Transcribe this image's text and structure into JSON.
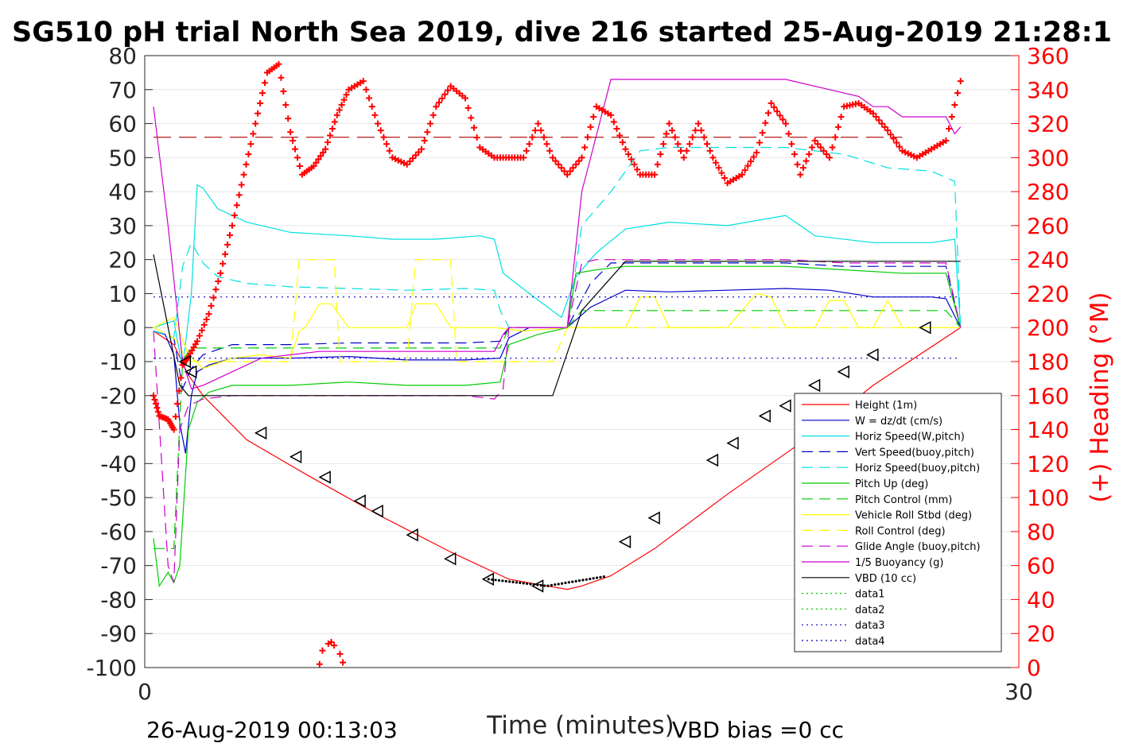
{
  "chart_data": {
    "type": "line",
    "title": "SG510 pH trial North Sea 2019, dive 216 started 25-Aug-2019 21:28:1",
    "xlabel": "Time (minutes)",
    "ylabel": "",
    "ylabel_right": "(+) Heading (°M)",
    "xlim": [
      0,
      30
    ],
    "ylim": [
      -100,
      80
    ],
    "ylim_right": [
      0,
      360
    ],
    "x_ticks": [
      "0",
      "30"
    ],
    "y_ticks": [
      "80",
      "70",
      "60",
      "50",
      "40",
      "30",
      "20",
      "10",
      "0",
      "-10",
      "-20",
      "-30",
      "-40",
      "-50",
      "-60",
      "-70",
      "-80",
      "-90",
      "-100"
    ],
    "y_ticks_right": [
      "360",
      "340",
      "320",
      "300",
      "280",
      "260",
      "240",
      "220",
      "200",
      "180",
      "160",
      "140",
      "120",
      "100",
      "80",
      "60",
      "40",
      "20",
      "0"
    ],
    "grid": true,
    "legend_position": "bottom-right",
    "footer_left": "26-Aug-2019 00:13:03",
    "footer_right": "VBD bias =0 cc",
    "colors": {
      "height": "#ff0000",
      "w": "#0000cc",
      "horiz_w": "#00e0e0",
      "vert_buoy": "#0000cc",
      "horiz_buoy": "#00e0e0",
      "pitch": "#00cc00",
      "pitch_ctrl": "#00cc00",
      "roll": "#ffff00",
      "roll_ctrl": "#ffff00",
      "glide": "#cc00cc",
      "buoy": "#cc00cc",
      "vbd": "#000000",
      "heading": "#ff0000",
      "heading_ref": "#aa0000"
    },
    "series": [
      {
        "name": "Height (1m)",
        "key": "height",
        "style": "solid",
        "x": [
          0.3,
          1.0,
          1.5,
          2.0,
          3.5,
          5.5,
          8.0,
          10.5,
          12.5,
          13.8,
          14.5,
          15.0,
          16.0,
          17.5,
          20.0,
          22.5,
          25.0,
          28.0
        ],
        "y": [
          -1,
          -5,
          -14,
          -20,
          -33,
          -43,
          -55,
          -66,
          -74,
          -76,
          -77,
          -76,
          -73,
          -65,
          -49,
          -34,
          -17,
          0
        ]
      },
      {
        "name": "W = dz/dt (cm/s)",
        "key": "w",
        "style": "solid",
        "x": [
          0.3,
          0.7,
          1.0,
          1.2,
          1.4,
          1.6,
          1.8,
          2.2,
          3.0,
          5.0,
          7.0,
          9.0,
          11.0,
          12.2,
          12.5,
          13.2,
          14.5,
          15.3,
          16.5,
          18.0,
          20.0,
          22.0,
          23.5,
          25.0,
          27.0,
          27.5,
          28.0
        ],
        "y": [
          -1,
          -2,
          -8,
          -28,
          -37,
          -20,
          -13,
          -11,
          -9,
          -9,
          -8.5,
          -9.5,
          -9.5,
          -9,
          -3,
          0,
          0,
          6,
          11,
          10.5,
          11,
          11.5,
          11,
          9,
          9,
          8.5,
          0
        ]
      },
      {
        "name": "Horiz Speed(W,pitch)",
        "key": "horiz_w",
        "style": "solid",
        "x": [
          0.3,
          1.0,
          1.3,
          1.6,
          1.8,
          2.0,
          2.5,
          3.5,
          5.0,
          7.0,
          8.5,
          10.0,
          11.5,
          12.0,
          12.3,
          13.2,
          14.3,
          14.8,
          15.5,
          16.5,
          18.0,
          20.0,
          22.0,
          23.0,
          25.0,
          27.0,
          27.8,
          28.0
        ],
        "y": [
          0,
          2,
          -12,
          10,
          42,
          41,
          35,
          31,
          28,
          27,
          26,
          26,
          27,
          26,
          16,
          10,
          3,
          15,
          22,
          29,
          31,
          30,
          33,
          27,
          25,
          25,
          26,
          0
        ]
      },
      {
        "name": "Vert Speed(buoy,pitch)",
        "key": "vert_buoy",
        "style": "dashed",
        "x": [
          0.3,
          1.0,
          1.3,
          1.6,
          2.0,
          3.0,
          5.0,
          7.0,
          9.0,
          11.0,
          12.2,
          12.5,
          13.0,
          14.5,
          15.3,
          16.0,
          18.0,
          20.0,
          22.0,
          24.0,
          26.0,
          27.5,
          28.0
        ],
        "y": [
          -1,
          -3,
          -18,
          -12,
          -8,
          -5,
          -5,
          -4.5,
          -4.5,
          -4.5,
          -4,
          0,
          0,
          0,
          13,
          19,
          19,
          19,
          19,
          18,
          18,
          18,
          0
        ]
      },
      {
        "name": "Horiz Speed(buoy,pitch)",
        "key": "horiz_buoy",
        "style": "dashed",
        "x": [
          0.3,
          1.0,
          1.3,
          1.6,
          2.0,
          2.5,
          3.5,
          5.0,
          7.0,
          9.0,
          11.0,
          12.0,
          12.2,
          12.5,
          14.5,
          15.0,
          16.0,
          17.0,
          18.0,
          20.0,
          22.0,
          24.0,
          25.5,
          27.0,
          27.8,
          28.0
        ],
        "y": [
          -1,
          -3,
          18,
          25,
          19,
          15,
          13,
          12,
          11.5,
          11,
          11.5,
          11,
          5,
          0,
          0,
          30,
          40,
          52,
          53,
          53,
          53,
          51,
          47,
          46,
          43,
          0
        ]
      },
      {
        "name": "Pitch Up (deg)",
        "key": "pitch",
        "style": "solid",
        "x": [
          0.3,
          0.5,
          0.8,
          1.0,
          1.2,
          1.5,
          1.8,
          2.2,
          3.0,
          5.0,
          7.0,
          9.0,
          11.0,
          12.2,
          12.5,
          13.5,
          14.5,
          14.8,
          15.5,
          16.5,
          18.0,
          20.0,
          22.0,
          24.0,
          26.0,
          27.5,
          28.0
        ],
        "y": [
          -62,
          -76,
          -72,
          -75,
          -70,
          -30,
          -22,
          -19,
          -17,
          -17,
          -16,
          -17,
          -17,
          -16,
          -5,
          -2,
          0,
          16,
          17,
          18,
          18,
          18,
          18,
          17,
          16,
          16,
          0
        ]
      },
      {
        "name": "Pitch Control (mm)",
        "key": "pitch_ctrl",
        "style": "dashed",
        "x": [
          0.3,
          0.9,
          1.0,
          1.3,
          1.5,
          1.7,
          2.0,
          3.0,
          5.0,
          7.0,
          9.0,
          11.0,
          12.2,
          12.5,
          13.5,
          14.5,
          15.0,
          16.0,
          18.0,
          20.0,
          22.0,
          24.0,
          26.0,
          27.5,
          28.0
        ],
        "y": [
          -65,
          -65,
          -65,
          -10,
          -7,
          -6,
          -6,
          -6,
          -6,
          -6,
          -6,
          -6,
          -6,
          0,
          0,
          0,
          5,
          5,
          5,
          5,
          5,
          5,
          5,
          5,
          0
        ]
      },
      {
        "name": "Vehicle Roll Stbd (deg)",
        "key": "roll",
        "style": "solid",
        "x": [
          0.3,
          1.0,
          1.5,
          2.0,
          3.0,
          4.0,
          5.0,
          5.3,
          5.5,
          6.0,
          6.4,
          7.0,
          8.5,
          9.0,
          9.3,
          10.0,
          10.5,
          12.0,
          13.0,
          14.5,
          16.0,
          16.5,
          17.0,
          17.5,
          18.0,
          19.0,
          20.0,
          21.0,
          21.5,
          22.0,
          23.0,
          23.5,
          24.0,
          24.5,
          25.0,
          25.5,
          26.0,
          27.0,
          28.0
        ],
        "y": [
          0,
          3,
          -8,
          -12,
          -9,
          -8,
          -9,
          -1,
          0,
          7,
          7,
          0,
          0,
          0,
          7,
          7,
          0,
          0,
          -1,
          0,
          0,
          0,
          9,
          9,
          0,
          0,
          0,
          10,
          9,
          0,
          0,
          8,
          8,
          0,
          0,
          8,
          0,
          0,
          0
        ]
      },
      {
        "name": "Roll Control (deg)",
        "key": "roll_ctrl",
        "style": "dashed",
        "x": [
          0.3,
          1.0,
          1.5,
          2.0,
          4.0,
          5.0,
          5.3,
          6.5,
          6.7,
          7.0,
          8.5,
          9.0,
          9.3,
          10.5,
          10.7,
          12.0,
          14.0,
          14.5,
          16.0,
          17.5,
          18.0,
          19.0,
          20.0,
          21.5,
          22.0,
          23.0,
          24.0,
          25.0,
          26.0,
          27.5,
          28.0
        ],
        "y": [
          0,
          -3,
          -10,
          -10,
          -10,
          -10,
          20,
          20,
          -10,
          -10,
          -10,
          -10,
          20,
          20,
          -10,
          -10,
          -10,
          0,
          0,
          0,
          0,
          0,
          0,
          0,
          0,
          0,
          0,
          0,
          0,
          0,
          0
        ]
      },
      {
        "name": "Glide Angle (buoy,pitch)",
        "key": "glide",
        "style": "dashed",
        "x": [
          0.3,
          0.8,
          1.0,
          1.2,
          1.5,
          2.0,
          3.0,
          5.0,
          7.0,
          9.0,
          11.0,
          12.0,
          12.3,
          12.5,
          14.5,
          15.0,
          15.5,
          16.5,
          18.0,
          20.0,
          22.0,
          24.0,
          26.0,
          27.5,
          28.0
        ],
        "y": [
          -1,
          -70,
          -75,
          -30,
          -23,
          -21,
          -20,
          -20,
          -20,
          -20,
          -20,
          -21,
          -18,
          0,
          0,
          19,
          20,
          20,
          20,
          20,
          20,
          19,
          19,
          19,
          0
        ]
      },
      {
        "name": "1/5 Buoyancy (g)",
        "key": "buoy",
        "style": "solid",
        "x": [
          0.3,
          0.8,
          1.3,
          1.6,
          2.0,
          3.0,
          4.0,
          6.0,
          8.0,
          10.0,
          11.5,
          12.0,
          12.3,
          12.5,
          14.0,
          14.5,
          15.0,
          16.0,
          17.5,
          19.5,
          22.0,
          24.5,
          25.0,
          25.5,
          26.0,
          27.0,
          27.5,
          27.8,
          28.0
        ],
        "y": [
          65,
          30,
          -10,
          -18,
          -17,
          -13,
          -9,
          -7,
          -7,
          -7,
          -7,
          -7,
          -2,
          0,
          0,
          0,
          40,
          73,
          73,
          73,
          73,
          68,
          65,
          65,
          62,
          62,
          62,
          57,
          59
        ]
      },
      {
        "name": "VBD (10 cc)",
        "key": "vbd",
        "style": "solid",
        "x": [
          0.3,
          1.2,
          1.5,
          3.0,
          5.0,
          8.0,
          11.0,
          12.0,
          14.0,
          15.0,
          16.5,
          18.0,
          20.0,
          24.0,
          28.0
        ],
        "y": [
          21.5,
          -17,
          -20,
          -20,
          -20,
          -20,
          -20,
          -20,
          -20,
          5,
          19.5,
          19.5,
          19.5,
          19.5,
          19.5
        ]
      },
      {
        "name": "data1",
        "key": "data1",
        "style": "dotted",
        "x": [],
        "y": []
      },
      {
        "name": "data2",
        "key": "data2",
        "style": "dotted",
        "x": [],
        "y": []
      },
      {
        "name": "data3",
        "key": "data3",
        "style": "dotted",
        "x": [
          0.3,
          28.0
        ],
        "y": [
          9,
          9
        ]
      },
      {
        "name": "data4",
        "key": "data4",
        "style": "dotted",
        "x": [
          0.3,
          28.0
        ],
        "y": [
          -9,
          -9
        ]
      }
    ],
    "heading_reference": 312,
    "heading": {
      "x": [
        0.3,
        0.5,
        0.8,
        1.0,
        1.3,
        1.5,
        1.8,
        2.2,
        2.6,
        3.0,
        3.4,
        3.8,
        4.2,
        4.6,
        5.0,
        5.4,
        5.8,
        6.2,
        6.6,
        7.0,
        7.5,
        8.0,
        8.5,
        9.0,
        9.5,
        10.0,
        10.5,
        11.0,
        11.5,
        12.0,
        12.5,
        13.0,
        13.5,
        14.0,
        14.5,
        15.0,
        15.5,
        16.0,
        16.5,
        17.0,
        17.5,
        18.0,
        18.5,
        19.0,
        19.5,
        20.0,
        20.5,
        21.0,
        21.5,
        22.0,
        22.5,
        23.0,
        23.5,
        24.0,
        24.5,
        25.0,
        25.5,
        26.0,
        26.5,
        27.0,
        27.5,
        28.0
      ],
      "y": [
        160,
        148,
        146,
        140,
        178,
        183,
        192,
        208,
        232,
        260,
        290,
        320,
        350,
        355,
        315,
        290,
        295,
        305,
        325,
        340,
        345,
        320,
        300,
        296,
        305,
        330,
        342,
        335,
        306,
        300,
        300,
        300,
        320,
        300,
        290,
        300,
        330,
        325,
        305,
        290,
        290,
        320,
        300,
        320,
        300,
        285,
        290,
        303,
        332,
        320,
        290,
        310,
        300,
        330,
        332,
        326,
        316,
        304,
        300,
        305,
        310,
        345
      ]
    },
    "heading_low_cluster": {
      "x": [
        6.0,
        6.1,
        6.3,
        6.4,
        6.5,
        6.7,
        6.8
      ],
      "y": [
        2,
        10,
        14,
        15,
        13,
        8,
        3
      ]
    },
    "markers": {
      "x": [
        1.4,
        1.6,
        4.0,
        5.2,
        6.2,
        7.4,
        8.0,
        9.2,
        10.5,
        11.8,
        13.5,
        16.5,
        17.5,
        19.5,
        20.2,
        21.3,
        22.0,
        23.0,
        24.0,
        25.0,
        26.8
      ],
      "y": [
        -10,
        -13,
        -31,
        -38,
        -44,
        -51,
        -54,
        -61,
        -68,
        -74,
        -76,
        -63,
        -56,
        -39,
        -34,
        -26,
        -23,
        -17,
        -13,
        -8,
        0
      ]
    }
  }
}
